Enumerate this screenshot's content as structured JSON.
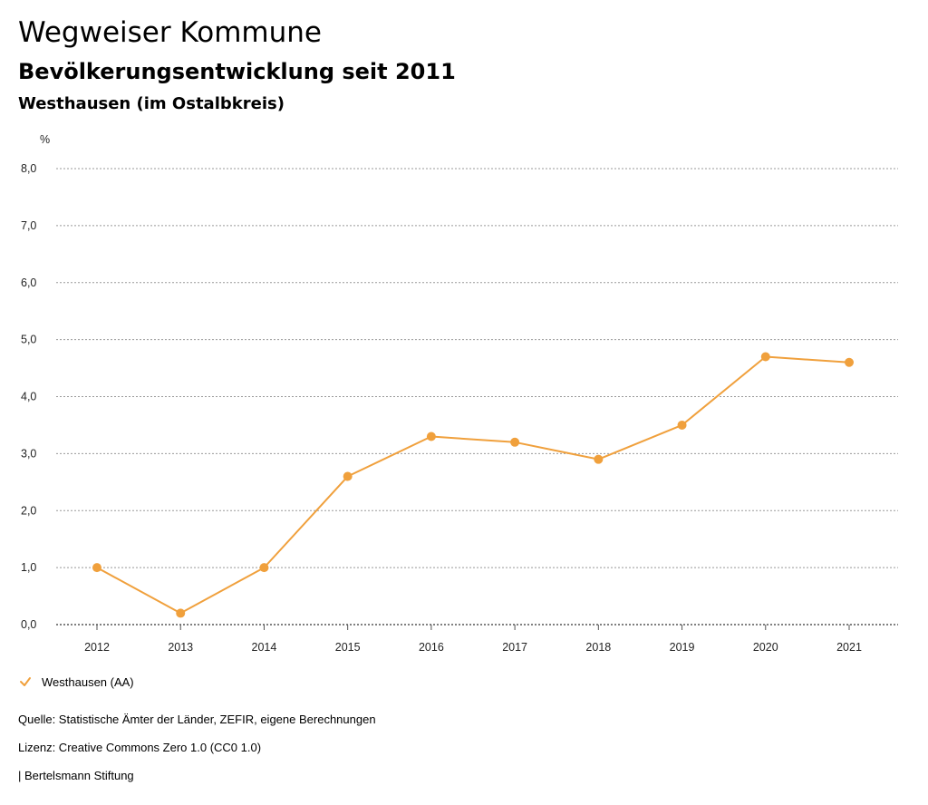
{
  "header": {
    "title": "Wegweiser Kommune",
    "subtitle": "Bevölkerungsentwicklung seit 2011",
    "region": "Westhausen (im Ostalbkreis)"
  },
  "colors": {
    "series": "#f0a03c",
    "grid": "#999999",
    "axis": "#000000"
  },
  "chart_data": {
    "type": "line",
    "title": "Bevölkerungsentwicklung seit 2011",
    "xlabel": "",
    "ylabel": "%",
    "categories": [
      "2012",
      "2013",
      "2014",
      "2015",
      "2016",
      "2017",
      "2018",
      "2019",
      "2020",
      "2021"
    ],
    "series": [
      {
        "name": "Westhausen (AA)",
        "values": [
          1.0,
          0.2,
          1.0,
          2.6,
          3.3,
          3.2,
          2.9,
          3.5,
          4.7,
          4.6
        ]
      }
    ],
    "ylim": [
      0,
      8
    ],
    "yticks": [
      0,
      1,
      2,
      3,
      4,
      5,
      6,
      7,
      8
    ],
    "ytick_labels": [
      "0,0",
      "1,0",
      "2,0",
      "3,0",
      "4,0",
      "5,0",
      "6,0",
      "7,0",
      "8,0"
    ],
    "grid": true,
    "legend": "bottom-left"
  },
  "legend": {
    "label": "Westhausen (AA)"
  },
  "footer": {
    "source": "Quelle: Statistische Ämter der Länder, ZEFIR, eigene Berechnungen",
    "license": "Lizenz: Creative Commons Zero 1.0 (CC0 1.0)",
    "publisher": "| Bertelsmann Stiftung"
  }
}
